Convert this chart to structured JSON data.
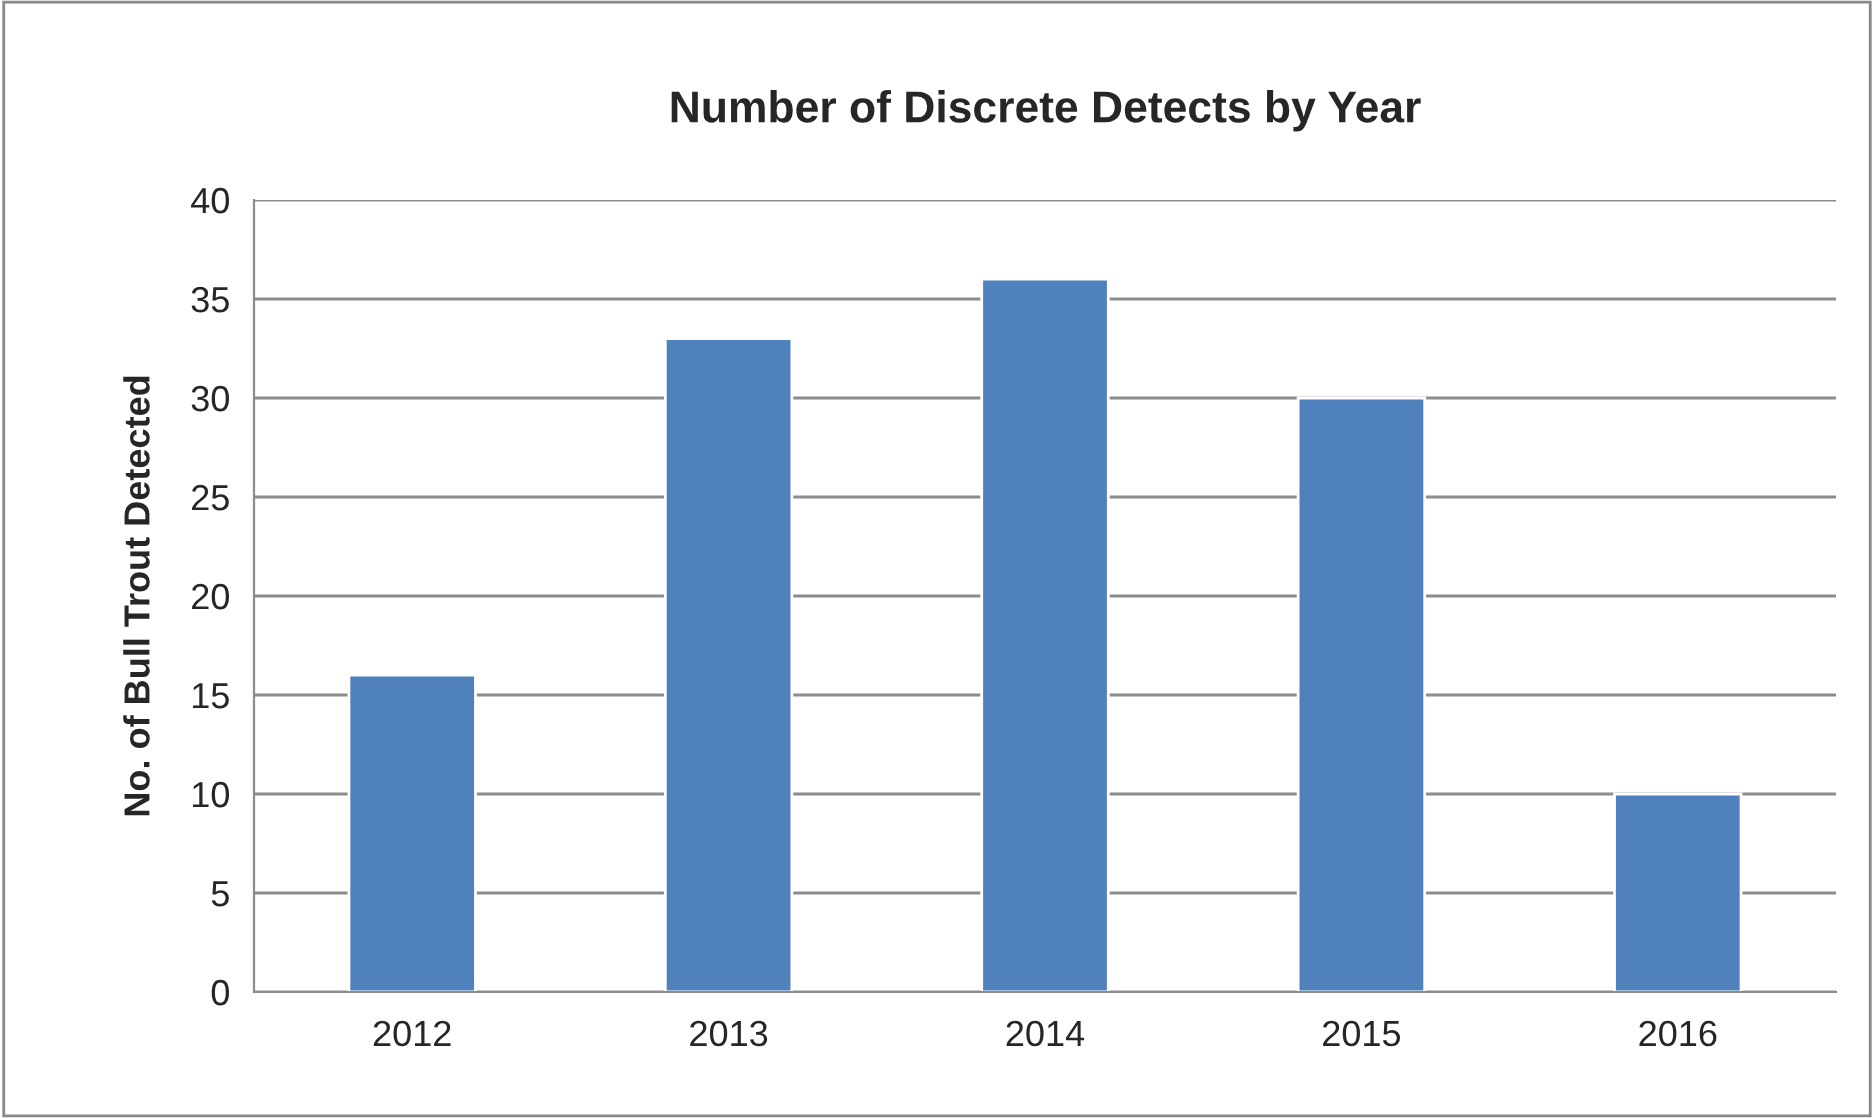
{
  "chart_data": {
    "type": "bar",
    "title": "Number of Discrete Detects by Year",
    "ylabel": "No. of Bull Trout Detected",
    "categories": [
      "2012",
      "2013",
      "2014",
      "2015",
      "2016"
    ],
    "values": [
      16,
      33,
      36,
      30,
      10
    ],
    "color": "#4f81bd",
    "ylim": [
      0,
      40
    ],
    "yticks": [
      0,
      5,
      10,
      15,
      20,
      25,
      30,
      35,
      40
    ],
    "grid": "y",
    "legend": false
  }
}
